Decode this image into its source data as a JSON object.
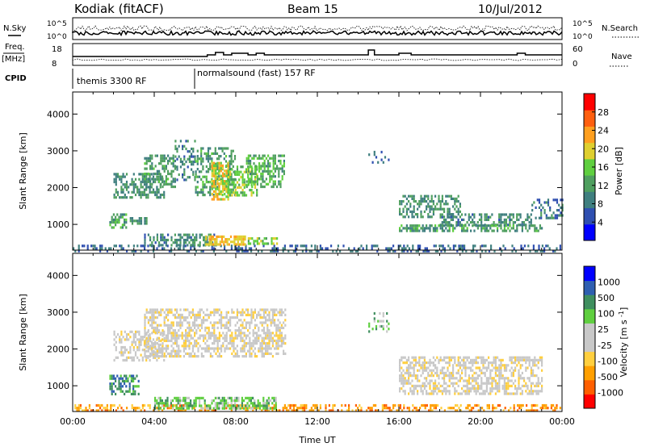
{
  "header": {
    "station": "Kodiak (fitACF)",
    "beam": "Beam 15",
    "date": "10/Jul/2012"
  },
  "summary_panels": {
    "nsky_label": "N.Sky",
    "nsearch_label": "N.Search",
    "nsky_ticks": [
      "10^5",
      "10^0"
    ],
    "nsearch_ticks": [
      "10^5",
      "10^0"
    ],
    "freq_label_1": "Freq.",
    "freq_label_2": "[MHz]",
    "freq_ticks": [
      "18",
      "8"
    ],
    "nave_label": "Nave",
    "nave_ticks": [
      "60",
      "0"
    ],
    "cpid_label": "CPID",
    "cpid_segments": [
      {
        "text": "themis 3300 RF",
        "start_hour": 0
      },
      {
        "text": "normalsound (fast) 157 RF",
        "start_hour": 6
      }
    ]
  },
  "colors": {
    "power_scale": [
      "#0000ff",
      "#2f4fb0",
      "#3f7f7f",
      "#4f9f5f",
      "#5fcf3f",
      "#dfcf2f",
      "#ff9f1f",
      "#ff5f0f",
      "#ff0000"
    ],
    "velocity_scale": [
      "#ff0000",
      "#ff5f00",
      "#ff9f00",
      "#ffcf3f",
      "#c8c8c8",
      "#c8c8c8",
      "#5fcf3f",
      "#3f8f5f",
      "#2f5fb0",
      "#0000ff"
    ]
  },
  "chart_data": [
    {
      "type": "heatmap",
      "quantity": "Power",
      "ylabel": "Slant Range [km]",
      "yticks": [
        "1000",
        "2000",
        "3000",
        "4000"
      ],
      "ylim": [
        300,
        4600
      ],
      "xlim_hours": [
        0,
        24
      ],
      "colorbar_label": "Power [dB]",
      "colorbar_ticks": [
        "4",
        "8",
        "12",
        "16",
        "20",
        "24",
        "28"
      ],
      "colorbar_range": [
        0,
        32
      ],
      "regions": [
        {
          "t0": 0.0,
          "t1": 24.0,
          "r0": 300,
          "r1": 450,
          "level": 6,
          "density": 0.35
        },
        {
          "t0": 2.8,
          "t1": 3.6,
          "r0": 1000,
          "r1": 1200,
          "level": 10,
          "density": 0.6
        },
        {
          "t0": 1.8,
          "t1": 2.6,
          "r0": 900,
          "r1": 1300,
          "level": 12,
          "density": 0.6
        },
        {
          "t0": 2.0,
          "t1": 4.5,
          "r0": 1700,
          "r1": 2400,
          "level": 10,
          "density": 0.5
        },
        {
          "t0": 3.5,
          "t1": 5.0,
          "r0": 2000,
          "r1": 2900,
          "level": 11,
          "density": 0.45
        },
        {
          "t0": 5.0,
          "t1": 6.0,
          "r0": 2200,
          "r1": 3300,
          "level": 9,
          "density": 0.35
        },
        {
          "t0": 6.0,
          "t1": 8.0,
          "r0": 1800,
          "r1": 3100,
          "level": 11,
          "density": 0.5
        },
        {
          "t0": 6.8,
          "t1": 7.6,
          "r0": 1700,
          "r1": 2700,
          "level": 20,
          "density": 0.65
        },
        {
          "t0": 7.6,
          "t1": 9.0,
          "r0": 1800,
          "r1": 2600,
          "level": 16,
          "density": 0.55
        },
        {
          "t0": 8.5,
          "t1": 10.4,
          "r0": 2000,
          "r1": 2900,
          "level": 13,
          "density": 0.5
        },
        {
          "t0": 3.5,
          "t1": 7.0,
          "r0": 450,
          "r1": 750,
          "level": 9,
          "density": 0.55
        },
        {
          "t0": 6.5,
          "t1": 8.5,
          "r0": 450,
          "r1": 700,
          "level": 22,
          "density": 0.7
        },
        {
          "t0": 8.5,
          "t1": 10.0,
          "r0": 450,
          "r1": 650,
          "level": 16,
          "density": 0.55
        },
        {
          "t0": 14.5,
          "t1": 15.5,
          "r0": 2700,
          "r1": 3000,
          "level": 7,
          "density": 0.3
        },
        {
          "t0": 16.0,
          "t1": 19.0,
          "r0": 1200,
          "r1": 1800,
          "level": 10,
          "density": 0.5
        },
        {
          "t0": 18.0,
          "t1": 22.5,
          "r0": 1000,
          "r1": 1300,
          "level": 9,
          "density": 0.5
        },
        {
          "t0": 16.0,
          "t1": 23.0,
          "r0": 800,
          "r1": 1000,
          "level": 11,
          "density": 0.55
        },
        {
          "t0": 22.5,
          "t1": 24.0,
          "r0": 1200,
          "r1": 1700,
          "level": 7,
          "density": 0.3
        }
      ]
    },
    {
      "type": "heatmap",
      "quantity": "Velocity",
      "ylabel": "Slant Range [km]",
      "xlabel": "Time UT",
      "yticks": [
        "1000",
        "2000",
        "3000",
        "4000"
      ],
      "ylim": [
        300,
        4600
      ],
      "xlim_hours": [
        0,
        24
      ],
      "xticks": [
        "00:00",
        "04:00",
        "08:00",
        "12:00",
        "16:00",
        "20:00",
        "00:00"
      ],
      "colorbar_label": "Velocity [m s^-1]",
      "colorbar_ticks": [
        "-1000",
        "-500",
        "-100",
        "-25",
        "25",
        "100",
        "500",
        "1000"
      ],
      "regions": [
        {
          "t0": 0.0,
          "t1": 24.0,
          "r0": 300,
          "r1": 500,
          "bin": 2,
          "density": 0.4
        },
        {
          "t0": 1.8,
          "t1": 3.2,
          "r0": 800,
          "r1": 1300,
          "bin": 7,
          "density": 0.55
        },
        {
          "t0": 2.0,
          "t1": 4.5,
          "r0": 1700,
          "r1": 2500,
          "bin": 4,
          "density": 0.5
        },
        {
          "t0": 3.5,
          "t1": 10.4,
          "r0": 1800,
          "r1": 3100,
          "bin": 4,
          "density": 0.55
        },
        {
          "t0": 4.0,
          "t1": 10.0,
          "r0": 400,
          "r1": 700,
          "bin": 6,
          "density": 0.6
        },
        {
          "t0": 16.0,
          "t1": 23.0,
          "r0": 800,
          "r1": 1800,
          "bin": 4,
          "density": 0.55
        },
        {
          "t0": 14.5,
          "t1": 15.5,
          "r0": 2500,
          "r1": 3000,
          "bin": 6,
          "density": 0.3
        }
      ]
    }
  ]
}
